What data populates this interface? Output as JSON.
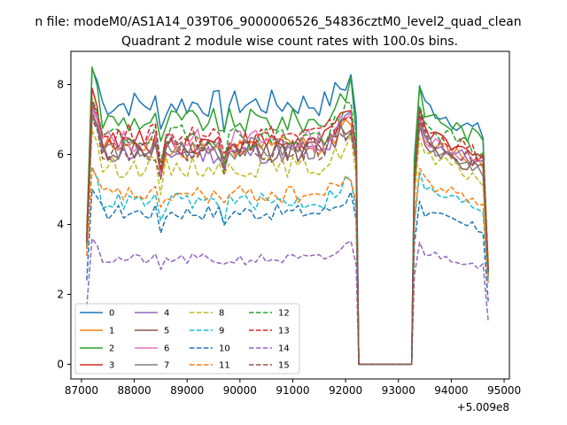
{
  "figure": {
    "suptitle": "n file: modeM0/AS1A14_039T06_9000006526_54836cztM0_level2_quad_clean",
    "background": "#ffffff"
  },
  "chart_data": {
    "type": "line",
    "title": "Quadrant 2 module wise count rates with 100.0s bins.",
    "xlabel": "",
    "ylabel": "",
    "x_offset_label": "+5.009e8",
    "xlim": [
      86800,
      95100
    ],
    "ylim": [
      -0.42,
      8.95
    ],
    "xticks": [
      87000,
      88000,
      89000,
      90000,
      91000,
      92000,
      93000,
      94000,
      95000
    ],
    "xtick_labels": [
      "87000",
      "88000",
      "89000",
      "90000",
      "91000",
      "92000",
      "93000",
      "94000",
      "95000"
    ],
    "yticks": [
      0,
      2,
      4,
      6,
      8
    ],
    "ytick_labels": [
      "0",
      "2",
      "4",
      "6",
      "8"
    ],
    "grid": false,
    "legend": {
      "placement": "lower-left",
      "ncol": 4
    },
    "segments": {
      "first": {
        "x_start": 87100,
        "x_end": 92200,
        "step": 100
      },
      "gap": {
        "x": [
          92250,
          93250
        ],
        "value": 0
      },
      "second": {
        "x_start": 93300,
        "x_end": 94700,
        "step": 100
      }
    },
    "series": [
      {
        "name": "0",
        "color": "#1f77b4",
        "dash": "solid",
        "level": 7.45,
        "start": 3.5,
        "peak": 8.45,
        "second_level": 7.55,
        "dip": 0.85
      },
      {
        "name": "1",
        "color": "#ff7f0e",
        "dash": "solid",
        "level": 6.2,
        "start": 3.9,
        "peak": 7.4,
        "second_level": 6.5,
        "dip": 0.7
      },
      {
        "name": "2",
        "color": "#2ca02c",
        "dash": "solid",
        "level": 6.95,
        "start": 3.7,
        "peak": 8.5,
        "second_level": 7.35,
        "dip": 0.8
      },
      {
        "name": "3",
        "color": "#d62728",
        "dash": "solid",
        "level": 6.35,
        "start": 3.3,
        "peak": 7.9,
        "second_level": 6.7,
        "dip": 0.75
      },
      {
        "name": "4",
        "color": "#9467bd",
        "dash": "solid",
        "level": 6.05,
        "start": 3.6,
        "peak": 7.5,
        "second_level": 6.55,
        "dip": 0.75
      },
      {
        "name": "5",
        "color": "#8c564b",
        "dash": "solid",
        "level": 6.1,
        "start": 3.4,
        "peak": 7.2,
        "second_level": 6.4,
        "dip": 0.7
      },
      {
        "name": "6",
        "color": "#e377c2",
        "dash": "solid",
        "level": 6.4,
        "start": 3.5,
        "peak": 7.3,
        "second_level": 6.6,
        "dip": 0.7
      },
      {
        "name": "7",
        "color": "#7f7f7f",
        "dash": "solid",
        "level": 6.15,
        "start": 3.4,
        "peak": 7.1,
        "second_level": 6.45,
        "dip": 0.7
      },
      {
        "name": "8",
        "color": "#bcbd22",
        "dash": "dashed",
        "level": 5.65,
        "start": 3.3,
        "peak": 6.7,
        "second_level": 6.05,
        "dip": 0.65
      },
      {
        "name": "9",
        "color": "#17becf",
        "dash": "dashed",
        "level": 4.65,
        "start": 3.1,
        "peak": 5.65,
        "second_level": 5.1,
        "dip": 0.7
      },
      {
        "name": "10",
        "color": "#1f77b4",
        "dash": "dashed",
        "level": 4.35,
        "start": 2.4,
        "peak": 5.0,
        "second_level": 4.4,
        "dip": 0.55
      },
      {
        "name": "11",
        "color": "#ff7f0e",
        "dash": "dashed",
        "level": 4.85,
        "start": 3.1,
        "peak": 5.6,
        "second_level": 5.3,
        "dip": 0.6
      },
      {
        "name": "12",
        "color": "#2ca02c",
        "dash": "dashed",
        "level": 6.5,
        "start": 3.5,
        "peak": 7.6,
        "second_level": 6.95,
        "dip": 0.75
      },
      {
        "name": "13",
        "color": "#d62728",
        "dash": "dashed",
        "level": 6.55,
        "start": 3.6,
        "peak": 7.5,
        "second_level": 6.85,
        "dip": 0.75
      },
      {
        "name": "14",
        "color": "#9467bd",
        "dash": "dashed",
        "level": 3.0,
        "start": 1.65,
        "peak": 3.6,
        "second_level": 3.25,
        "dip": 0.35
      },
      {
        "name": "15",
        "color": "#8c564b",
        "dash": "dashed",
        "level": 6.15,
        "start": 3.5,
        "peak": 7.0,
        "second_level": 6.6,
        "dip": 0.7
      }
    ]
  }
}
